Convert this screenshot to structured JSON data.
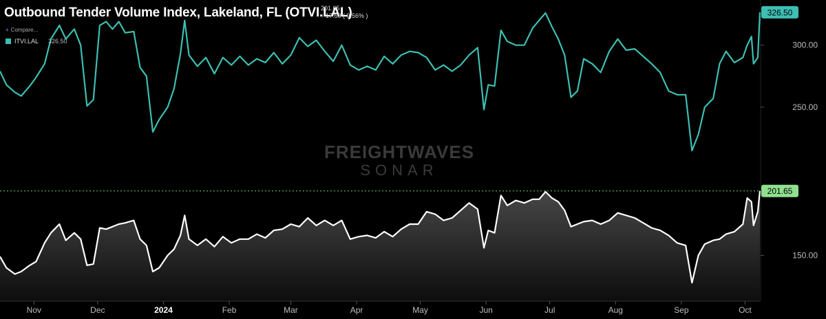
{
  "header": {
    "title": "Outbound Tender Volume Index, Lakeland, FL (OTVI.LAL)",
    "current_value": "201.65",
    "change": "17.60 ( 9.56% )",
    "compare_label": "Compare..."
  },
  "legend": {
    "name": "ITVI.LAL",
    "value": "326.50"
  },
  "watermark": {
    "line1": "FREIGHTWAVES",
    "line2": "SONAR"
  },
  "colors": {
    "background": "#000000",
    "teal_series": "#3dbfb3",
    "white_series": "#ffffff",
    "current_badge": "#8fe08f"
  },
  "chart_data": {
    "type": "line",
    "x_start": "2023-10-16",
    "x_end": "2024-10-08",
    "x_ticks": [
      {
        "date": "2023-11-01",
        "label": "Nov"
      },
      {
        "date": "2023-12-01",
        "label": "Dec"
      },
      {
        "date": "2024-01-01",
        "label": "2024"
      },
      {
        "date": "2024-02-01",
        "label": "Feb"
      },
      {
        "date": "2024-03-01",
        "label": "Mar"
      },
      {
        "date": "2024-04-01",
        "label": "Apr"
      },
      {
        "date": "2024-05-01",
        "label": "May"
      },
      {
        "date": "2024-06-01",
        "label": "Jun"
      },
      {
        "date": "2024-07-01",
        "label": "Jul"
      },
      {
        "date": "2024-08-01",
        "label": "Aug"
      },
      {
        "date": "2024-09-01",
        "label": "Sep"
      },
      {
        "date": "2024-10-01",
        "label": "Oct"
      }
    ],
    "panels": [
      {
        "series_name": "ITVI.LAL",
        "color": "#3dbfb3",
        "ylim": [
          210,
          332
        ],
        "y_ticks": [
          250,
          300
        ],
        "y_tick_labels": [
          "250.00",
          "300.00"
        ],
        "last_value_label": "326.50",
        "points": [
          [
            "2023-10-16",
            279
          ],
          [
            "2023-10-19",
            268
          ],
          [
            "2023-10-23",
            262
          ],
          [
            "2023-10-26",
            259
          ],
          [
            "2023-10-30",
            267
          ],
          [
            "2023-11-02",
            274
          ],
          [
            "2023-11-06",
            285
          ],
          [
            "2023-11-09",
            305
          ],
          [
            "2023-11-13",
            316
          ],
          [
            "2023-11-16",
            305
          ],
          [
            "2023-11-20",
            313
          ],
          [
            "2023-11-23",
            300
          ],
          [
            "2023-11-26",
            251
          ],
          [
            "2023-11-29",
            256
          ],
          [
            "2023-12-02",
            316
          ],
          [
            "2023-12-05",
            319
          ],
          [
            "2023-12-08",
            313
          ],
          [
            "2023-12-11",
            319
          ],
          [
            "2023-12-14",
            310
          ],
          [
            "2023-12-18",
            311
          ],
          [
            "2023-12-21",
            282
          ],
          [
            "2023-12-24",
            275
          ],
          [
            "2023-12-27",
            230
          ],
          [
            "2023-12-30",
            240
          ],
          [
            "2024-01-03",
            250
          ],
          [
            "2024-01-06",
            265
          ],
          [
            "2024-01-09",
            293
          ],
          [
            "2024-01-11",
            320
          ],
          [
            "2024-01-13",
            292
          ],
          [
            "2024-01-17",
            283
          ],
          [
            "2024-01-21",
            290
          ],
          [
            "2024-01-25",
            277
          ],
          [
            "2024-01-29",
            290
          ],
          [
            "2024-02-02",
            284
          ],
          [
            "2024-02-06",
            291
          ],
          [
            "2024-02-10",
            284
          ],
          [
            "2024-02-14",
            289
          ],
          [
            "2024-02-18",
            286
          ],
          [
            "2024-02-22",
            294
          ],
          [
            "2024-02-26",
            285
          ],
          [
            "2024-03-01",
            292
          ],
          [
            "2024-03-05",
            306
          ],
          [
            "2024-03-09",
            299
          ],
          [
            "2024-03-13",
            304
          ],
          [
            "2024-03-17",
            295
          ],
          [
            "2024-03-21",
            287
          ],
          [
            "2024-03-25",
            300
          ],
          [
            "2024-03-29",
            284
          ],
          [
            "2024-04-02",
            280
          ],
          [
            "2024-04-06",
            283
          ],
          [
            "2024-04-10",
            280
          ],
          [
            "2024-04-14",
            291
          ],
          [
            "2024-04-18",
            285
          ],
          [
            "2024-04-22",
            292
          ],
          [
            "2024-04-26",
            295
          ],
          [
            "2024-04-30",
            294
          ],
          [
            "2024-05-04",
            290
          ],
          [
            "2024-05-08",
            280
          ],
          [
            "2024-05-12",
            284
          ],
          [
            "2024-05-16",
            279
          ],
          [
            "2024-05-20",
            284
          ],
          [
            "2024-05-24",
            292
          ],
          [
            "2024-05-28",
            298
          ],
          [
            "2024-05-31",
            248
          ],
          [
            "2024-06-02",
            268
          ],
          [
            "2024-06-05",
            267
          ],
          [
            "2024-06-08",
            312
          ],
          [
            "2024-06-11",
            303
          ],
          [
            "2024-06-15",
            300
          ],
          [
            "2024-06-19",
            300
          ],
          [
            "2024-06-23",
            314
          ],
          [
            "2024-06-26",
            320
          ],
          [
            "2024-06-29",
            326
          ],
          [
            "2024-07-02",
            315
          ],
          [
            "2024-07-05",
            305
          ],
          [
            "2024-07-08",
            292
          ],
          [
            "2024-07-11",
            258
          ],
          [
            "2024-07-14",
            263
          ],
          [
            "2024-07-17",
            289
          ],
          [
            "2024-07-21",
            285
          ],
          [
            "2024-07-25",
            278
          ],
          [
            "2024-07-29",
            295
          ],
          [
            "2024-08-02",
            305
          ],
          [
            "2024-08-06",
            296
          ],
          [
            "2024-08-10",
            297
          ],
          [
            "2024-08-14",
            291
          ],
          [
            "2024-08-18",
            285
          ],
          [
            "2024-08-22",
            278
          ],
          [
            "2024-08-26",
            263
          ],
          [
            "2024-08-30",
            260
          ],
          [
            "2024-09-03",
            260
          ],
          [
            "2024-09-06",
            215
          ],
          [
            "2024-09-09",
            228
          ],
          [
            "2024-09-12",
            250
          ],
          [
            "2024-09-16",
            257
          ],
          [
            "2024-09-19",
            285
          ],
          [
            "2024-09-22",
            295
          ],
          [
            "2024-09-26",
            286
          ],
          [
            "2024-09-30",
            290
          ],
          [
            "2024-10-02",
            300
          ],
          [
            "2024-10-04",
            307
          ],
          [
            "2024-10-05",
            285
          ],
          [
            "2024-10-07",
            290
          ],
          [
            "2024-10-08",
            326.5
          ]
        ]
      },
      {
        "series_name": "OTVI.LAL",
        "color": "#ffffff",
        "ylim": [
          121,
          207
        ],
        "y_ticks": [
          150
        ],
        "y_tick_labels": [
          "150.00"
        ],
        "last_value_label": "201.65",
        "points": [
          [
            "2023-10-16",
            149
          ],
          [
            "2023-10-19",
            140
          ],
          [
            "2023-10-23",
            135
          ],
          [
            "2023-10-26",
            137
          ],
          [
            "2023-10-30",
            142
          ],
          [
            "2023-11-02",
            145
          ],
          [
            "2023-11-06",
            160
          ],
          [
            "2023-11-09",
            168
          ],
          [
            "2023-11-13",
            175
          ],
          [
            "2023-11-16",
            162
          ],
          [
            "2023-11-20",
            168
          ],
          [
            "2023-11-23",
            163
          ],
          [
            "2023-11-26",
            142
          ],
          [
            "2023-11-29",
            143
          ],
          [
            "2023-12-02",
            172
          ],
          [
            "2023-12-05",
            171
          ],
          [
            "2023-12-08",
            173
          ],
          [
            "2023-12-11",
            175
          ],
          [
            "2023-12-14",
            176
          ],
          [
            "2023-12-18",
            178
          ],
          [
            "2023-12-21",
            163
          ],
          [
            "2023-12-24",
            158
          ],
          [
            "2023-12-27",
            137
          ],
          [
            "2023-12-30",
            140
          ],
          [
            "2024-01-03",
            150
          ],
          [
            "2024-01-06",
            155
          ],
          [
            "2024-01-09",
            166
          ],
          [
            "2024-01-11",
            182
          ],
          [
            "2024-01-13",
            163
          ],
          [
            "2024-01-17",
            158
          ],
          [
            "2024-01-21",
            163
          ],
          [
            "2024-01-25",
            157
          ],
          [
            "2024-01-29",
            165
          ],
          [
            "2024-02-02",
            160
          ],
          [
            "2024-02-06",
            163
          ],
          [
            "2024-02-10",
            163
          ],
          [
            "2024-02-14",
            167
          ],
          [
            "2024-02-18",
            164
          ],
          [
            "2024-02-22",
            170
          ],
          [
            "2024-02-26",
            171
          ],
          [
            "2024-03-01",
            175
          ],
          [
            "2024-03-05",
            173
          ],
          [
            "2024-03-09",
            180
          ],
          [
            "2024-03-13",
            174
          ],
          [
            "2024-03-17",
            178
          ],
          [
            "2024-03-21",
            174
          ],
          [
            "2024-03-25",
            178
          ],
          [
            "2024-03-29",
            163
          ],
          [
            "2024-04-02",
            165
          ],
          [
            "2024-04-06",
            166
          ],
          [
            "2024-04-10",
            164
          ],
          [
            "2024-04-14",
            169
          ],
          [
            "2024-04-18",
            165
          ],
          [
            "2024-04-22",
            171
          ],
          [
            "2024-04-26",
            175
          ],
          [
            "2024-04-30",
            175
          ],
          [
            "2024-05-04",
            185
          ],
          [
            "2024-05-08",
            183
          ],
          [
            "2024-05-12",
            178
          ],
          [
            "2024-05-16",
            180
          ],
          [
            "2024-05-20",
            186
          ],
          [
            "2024-05-24",
            192
          ],
          [
            "2024-05-28",
            187
          ],
          [
            "2024-05-31",
            156
          ],
          [
            "2024-06-02",
            170
          ],
          [
            "2024-06-05",
            168
          ],
          [
            "2024-06-08",
            198
          ],
          [
            "2024-06-11",
            190
          ],
          [
            "2024-06-15",
            194
          ],
          [
            "2024-06-19",
            192
          ],
          [
            "2024-06-23",
            195
          ],
          [
            "2024-06-26",
            195
          ],
          [
            "2024-06-29",
            201
          ],
          [
            "2024-07-02",
            196
          ],
          [
            "2024-07-05",
            193
          ],
          [
            "2024-07-08",
            186
          ],
          [
            "2024-07-11",
            173
          ],
          [
            "2024-07-14",
            175
          ],
          [
            "2024-07-17",
            177
          ],
          [
            "2024-07-21",
            178
          ],
          [
            "2024-07-25",
            175
          ],
          [
            "2024-07-29",
            178
          ],
          [
            "2024-08-02",
            184
          ],
          [
            "2024-08-06",
            182
          ],
          [
            "2024-08-10",
            180
          ],
          [
            "2024-08-14",
            176
          ],
          [
            "2024-08-18",
            172
          ],
          [
            "2024-08-22",
            170
          ],
          [
            "2024-08-26",
            166
          ],
          [
            "2024-08-30",
            160
          ],
          [
            "2024-09-03",
            158
          ],
          [
            "2024-09-06",
            128
          ],
          [
            "2024-09-09",
            150
          ],
          [
            "2024-09-12",
            159
          ],
          [
            "2024-09-16",
            162
          ],
          [
            "2024-09-19",
            163
          ],
          [
            "2024-09-22",
            167
          ],
          [
            "2024-09-26",
            169
          ],
          [
            "2024-09-30",
            175
          ],
          [
            "2024-10-02",
            196
          ],
          [
            "2024-10-04",
            193
          ],
          [
            "2024-10-05",
            174
          ],
          [
            "2024-10-07",
            185
          ],
          [
            "2024-10-08",
            201.65
          ]
        ]
      }
    ]
  }
}
